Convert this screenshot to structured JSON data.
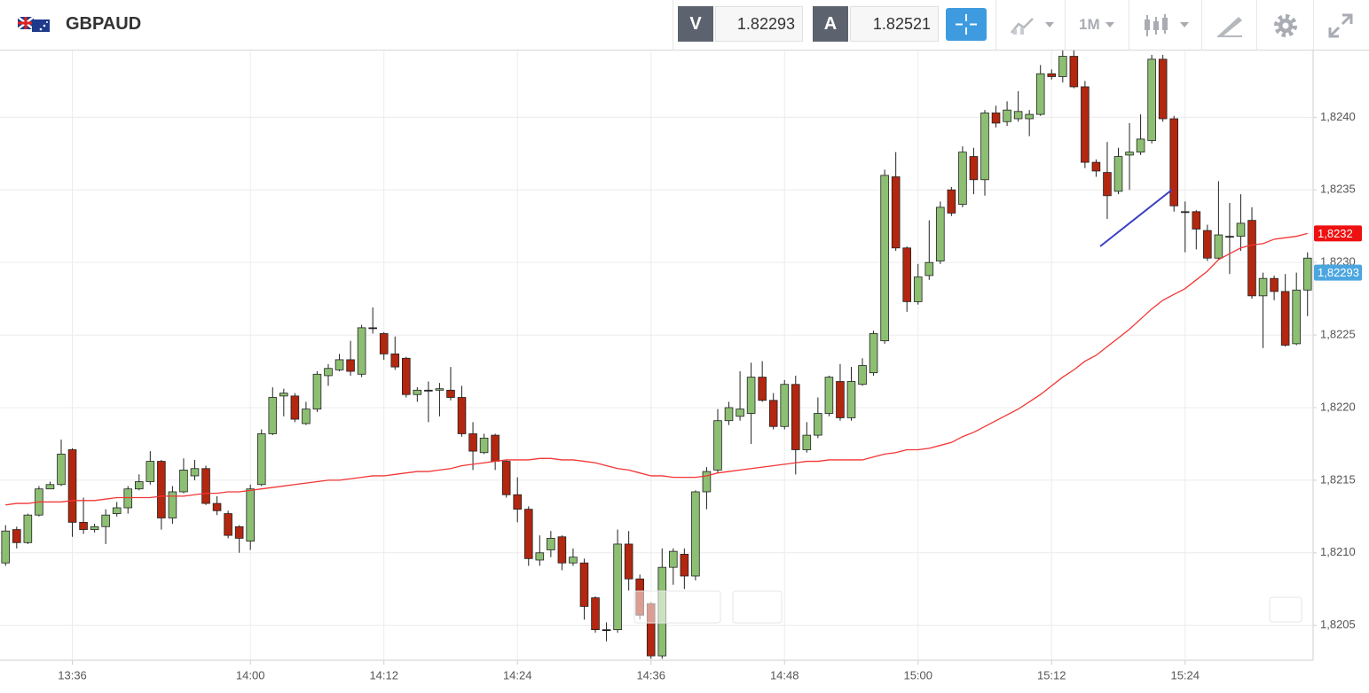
{
  "toolbar": {
    "symbol": "GBPAUD",
    "bid_label": "V",
    "bid": "1.82293",
    "ask_label": "A",
    "ask": "1.82521",
    "timeframe": "1M"
  },
  "chart_data": {
    "type": "candlestick",
    "categories": [
      null,
      null,
      null,
      null,
      null,
      null,
      "13:36",
      null,
      null,
      null,
      null,
      null,
      null,
      null,
      null,
      null,
      null,
      null,
      null,
      null,
      null,
      null,
      "14:00",
      null,
      null,
      null,
      null,
      null,
      null,
      null,
      null,
      null,
      null,
      null,
      "14:12",
      null,
      null,
      null,
      null,
      null,
      null,
      null,
      null,
      null,
      null,
      null,
      "14:24",
      null,
      null,
      null,
      null,
      null,
      null,
      null,
      null,
      null,
      null,
      null,
      "14:36",
      null,
      null,
      null,
      null,
      null,
      null,
      null,
      null,
      null,
      null,
      null,
      "14:48",
      null,
      null,
      null,
      null,
      null,
      null,
      null,
      null,
      null,
      null,
      null,
      "15:00",
      null,
      null,
      null,
      null,
      null,
      null,
      null,
      null,
      null,
      null,
      null,
      "15:12",
      null,
      null,
      null,
      null,
      null,
      null,
      null,
      null,
      null,
      null,
      null,
      "15:24",
      null,
      null,
      null,
      null,
      null,
      null,
      null,
      null,
      null,
      null,
      null
    ],
    "open": [
      1.82093,
      1.82116,
      1.82107,
      1.82126,
      1.82144,
      1.82147,
      1.82171,
      1.82121,
      1.82116,
      1.82118,
      1.82127,
      1.82131,
      1.82144,
      1.82149,
      1.82163,
      1.82124,
      1.82142,
      1.82153,
      1.82158,
      1.82134,
      1.82127,
      1.82118,
      1.82108,
      1.82147,
      1.82182,
      1.82208,
      1.82208,
      1.82189,
      1.82199,
      1.82222,
      1.82226,
      1.82233,
      1.82223,
      1.82255,
      1.82251,
      1.82237,
      1.82234,
      1.82209,
      1.82212,
      1.82212,
      1.82212,
      1.82207,
      1.82182,
      1.82169,
      1.82181,
      1.82163,
      1.8214,
      1.8213,
      1.82095,
      1.82102,
      1.82111,
      1.82093,
      1.82093,
      1.82069,
      1.82047,
      1.82047,
      1.82106,
      1.82082,
      1.82065,
      1.82029,
      1.8209,
      1.82099,
      1.82084,
      1.82142,
      1.82157,
      1.82191,
      1.82194,
      1.82196,
      1.82221,
      1.82205,
      1.82187,
      1.82216,
      1.82171,
      1.82181,
      1.82196,
      1.82218,
      1.82193,
      1.82216,
      1.82224,
      1.82246,
      1.82359,
      1.8231,
      1.82273,
      1.82291,
      1.82301,
      1.8235,
      1.8234,
      1.82373,
      1.82357,
      1.82403,
      1.82397,
      1.82399,
      1.82399,
      1.82402,
      1.8243,
      1.82428,
      1.82442,
      1.82421,
      1.82369,
      1.82362,
      1.82349,
      1.82374,
      1.82376,
      1.82384,
      1.8244,
      1.82399,
      1.82335,
      1.82335,
      1.82322,
      1.82303,
      1.82318,
      1.82318,
      1.82329,
      1.82277,
      1.82289,
      1.8228,
      1.82244,
      1.82281
    ],
    "high": [
      1.82119,
      1.82118,
      1.82127,
      1.82146,
      1.82149,
      1.82178,
      1.82172,
      1.82138,
      1.8212,
      1.8213,
      1.82135,
      1.82146,
      1.82154,
      1.8217,
      1.82164,
      1.82146,
      1.82165,
      1.82164,
      1.8216,
      1.82139,
      1.82129,
      1.82119,
      1.82147,
      1.82185,
      1.82214,
      1.82213,
      1.8221,
      1.82204,
      1.82225,
      1.8223,
      1.82237,
      1.82246,
      1.82257,
      1.82269,
      1.82252,
      1.82249,
      1.82235,
      1.82214,
      1.82218,
      1.82217,
      1.82228,
      1.82215,
      1.8219,
      1.82182,
      1.82182,
      1.82164,
      1.82152,
      1.82132,
      1.82112,
      1.82115,
      1.82112,
      1.82103,
      1.82096,
      1.8207,
      1.82052,
      1.82116,
      1.82115,
      1.82085,
      1.82066,
      1.82103,
      1.82103,
      1.82103,
      1.82143,
      1.82159,
      1.82199,
      1.82204,
      1.82225,
      1.82231,
      1.82232,
      1.8221,
      1.82219,
      1.82222,
      1.8219,
      1.82207,
      1.82222,
      1.8223,
      1.82228,
      1.82234,
      1.82253,
      1.82364,
      1.82376,
      1.82311,
      1.82299,
      1.82329,
      1.82342,
      1.82352,
      1.8238,
      1.82379,
      1.82405,
      1.82408,
      1.82411,
      1.82418,
      1.82405,
      1.82436,
      1.82433,
      1.82446,
      1.82446,
      1.82425,
      1.82371,
      1.82383,
      1.82379,
      1.82396,
      1.82402,
      1.82443,
      1.82443,
      1.82401,
      1.82342,
      1.82336,
      1.82326,
      1.82356,
      1.82341,
      1.82347,
      1.82338,
      1.82293,
      1.82291,
      1.82292,
      1.82293,
      1.82307
    ],
    "low": [
      1.82091,
      1.82103,
      1.82106,
      1.82125,
      1.82144,
      1.82146,
      1.82111,
      1.82113,
      1.82114,
      1.82106,
      1.82125,
      1.82127,
      1.82143,
      1.82147,
      1.82116,
      1.8212,
      1.82141,
      1.8215,
      1.82133,
      1.82126,
      1.8211,
      1.821,
      1.82102,
      1.82146,
      1.82181,
      1.82194,
      1.8219,
      1.82188,
      1.82197,
      1.82215,
      1.82225,
      1.82222,
      1.82221,
      1.82251,
      1.82233,
      1.82226,
      1.82207,
      1.82204,
      1.8219,
      1.82194,
      1.82205,
      1.8218,
      1.82157,
      1.82168,
      1.82157,
      1.82138,
      1.82121,
      1.82091,
      1.82091,
      1.82097,
      1.82088,
      1.82091,
      1.82054,
      1.82045,
      1.82039,
      1.82045,
      1.82074,
      1.82054,
      1.82027,
      1.82027,
      1.82078,
      1.82075,
      1.82081,
      1.8213,
      1.82155,
      1.82188,
      1.82191,
      1.82175,
      1.82204,
      1.82185,
      1.82185,
      1.82154,
      1.82169,
      1.82179,
      1.82194,
      1.82191,
      1.82191,
      1.82215,
      1.82222,
      1.82244,
      1.82308,
      1.82266,
      1.82271,
      1.82288,
      1.82299,
      1.82332,
      1.82338,
      1.82347,
      1.82346,
      1.82393,
      1.82394,
      1.82397,
      1.82387,
      1.82401,
      1.82426,
      1.82424,
      1.8242,
      1.82365,
      1.82359,
      1.8233,
      1.82347,
      1.8235,
      1.82374,
      1.82382,
      1.82397,
      1.82335,
      1.82307,
      1.82309,
      1.82301,
      1.82302,
      1.82292,
      1.82308,
      1.82275,
      1.82241,
      1.82274,
      1.82242,
      1.82243,
      1.82263
    ],
    "close": [
      1.82115,
      1.82107,
      1.82126,
      1.82144,
      1.82147,
      1.82168,
      1.82121,
      1.82116,
      1.82118,
      1.82126,
      1.82131,
      1.82144,
      1.82149,
      1.82163,
      1.82124,
      1.82142,
      1.82157,
      1.82158,
      1.82134,
      1.82129,
      1.82112,
      1.8211,
      1.82144,
      1.82182,
      1.82207,
      1.8221,
      1.82192,
      1.82199,
      1.82223,
      1.82227,
      1.82233,
      1.82225,
      1.82255,
      1.82255,
      1.82237,
      1.82228,
      1.82209,
      1.82212,
      1.82212,
      1.82213,
      1.82207,
      1.82182,
      1.8217,
      1.82179,
      1.82163,
      1.8214,
      1.8213,
      1.82096,
      1.821,
      1.8211,
      1.82093,
      1.82097,
      1.82063,
      1.82047,
      1.82047,
      1.82106,
      1.82082,
      1.82057,
      1.82029,
      1.8209,
      1.82101,
      1.82084,
      1.82142,
      1.82156,
      1.82191,
      1.822,
      1.82199,
      1.82221,
      1.82205,
      1.82187,
      1.82216,
      1.82171,
      1.82181,
      1.82196,
      1.82221,
      1.82193,
      1.82218,
      1.82229,
      1.82251,
      1.8236,
      1.8231,
      1.82273,
      1.8229,
      1.823,
      1.82338,
      1.82334,
      1.82376,
      1.82357,
      1.82403,
      1.82396,
      1.82405,
      1.82404,
      1.82402,
      1.8243,
      1.82428,
      1.82442,
      1.82421,
      1.82369,
      1.82363,
      1.82346,
      1.82373,
      1.82376,
      1.82385,
      1.8244,
      1.82399,
      1.82339,
      1.82335,
      1.82323,
      1.82303,
      1.82319,
      1.82318,
      1.82327,
      1.82277,
      1.82289,
      1.8228,
      1.82243,
      1.82281,
      1.82303
    ],
    "up_color": "#8dbf73",
    "down_color": "#b3260f",
    "moving_average": {
      "color": "#f23535",
      "values": [
        1.82133,
        1.82134,
        1.82134,
        1.82135,
        1.82135,
        1.82135,
        1.82136,
        1.82136,
        1.82136,
        1.82137,
        1.82138,
        1.82138,
        1.82138,
        1.82138,
        1.82139,
        1.82139,
        1.82139,
        1.8214,
        1.82141,
        1.82141,
        1.82142,
        1.82142,
        1.82143,
        1.82144,
        1.82145,
        1.82146,
        1.82147,
        1.82148,
        1.82149,
        1.8215,
        1.8215,
        1.82151,
        1.82152,
        1.82153,
        1.82153,
        1.82154,
        1.82155,
        1.82156,
        1.82156,
        1.82157,
        1.82158,
        1.8216,
        1.82161,
        1.82162,
        1.82163,
        1.82164,
        1.82164,
        1.82164,
        1.82165,
        1.82165,
        1.82164,
        1.82164,
        1.82163,
        1.82162,
        1.8216,
        1.82158,
        1.82157,
        1.82155,
        1.82153,
        1.82153,
        1.82152,
        1.82152,
        1.82152,
        1.82153,
        1.82155,
        1.82156,
        1.82157,
        1.82158,
        1.82159,
        1.8216,
        1.82161,
        1.82162,
        1.82163,
        1.82163,
        1.82164,
        1.82164,
        1.82164,
        1.82164,
        1.82166,
        1.82168,
        1.82169,
        1.82171,
        1.82171,
        1.82172,
        1.82174,
        1.82176,
        1.8218,
        1.82183,
        1.82187,
        1.82191,
        1.82195,
        1.82199,
        1.82204,
        1.82209,
        1.82215,
        1.82221,
        1.82226,
        1.82232,
        1.82236,
        1.82242,
        1.82248,
        1.82254,
        1.82261,
        1.82268,
        1.82274,
        1.82278,
        1.82282,
        1.82288,
        1.82294,
        1.82302,
        1.82306,
        1.8231,
        1.82312,
        1.82313,
        1.82316,
        1.82317,
        1.82318,
        1.8232
      ]
    },
    "ylim": [
      1.82026,
      1.82446
    ],
    "yticks": [
      {
        "value": 1.8205,
        "label": "1,8205"
      },
      {
        "value": 1.821,
        "label": "1,8210"
      },
      {
        "value": 1.8215,
        "label": "1,8215"
      },
      {
        "value": 1.822,
        "label": "1,8220"
      },
      {
        "value": 1.8225,
        "label": "1,8225"
      },
      {
        "value": 1.823,
        "label": "1,8230"
      },
      {
        "value": 1.8235,
        "label": "1,8235"
      },
      {
        "value": 1.824,
        "label": "1,8240"
      }
    ],
    "grid": true,
    "price_markers": [
      {
        "value": 1.8232,
        "label": "1,8232",
        "color": "#ee1111"
      },
      {
        "value": 1.82293,
        "label": "1,82293",
        "color": "#4ba6df"
      }
    ]
  }
}
